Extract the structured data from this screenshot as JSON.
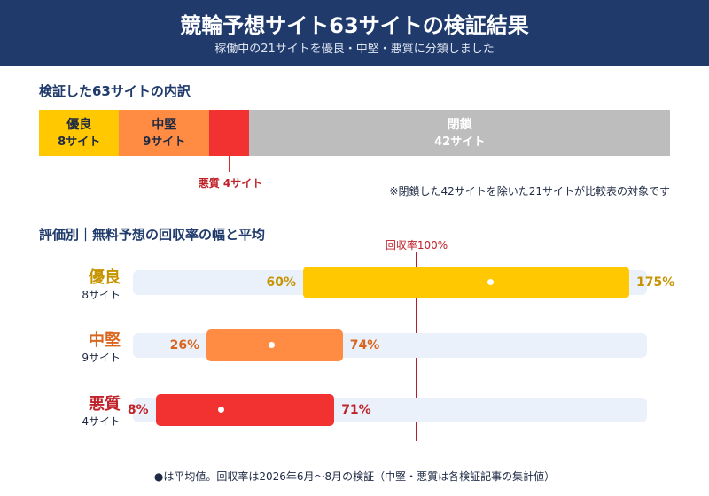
{
  "header": {
    "title": "競輪予想サイト63サイトの検証結果",
    "subtitle": "稼働中の21サイトを優良・中堅・悪質に分類しました"
  },
  "breakdown": {
    "section_title": "検証した63サイトの内訳",
    "total": 63,
    "segments": [
      {
        "name": "優良",
        "count_label": "8サイト",
        "count": 8,
        "color": "#ffc800",
        "text_color": "#1f2a44"
      },
      {
        "name": "中堅",
        "count_label": "9サイト",
        "count": 9,
        "color": "#ff8c42",
        "text_color": "#1f2a44"
      },
      {
        "name": "悪質",
        "count_label": "4サイト",
        "count": 4,
        "color": "#f23131",
        "text_color": "#ffffff"
      },
      {
        "name": "閉鎖",
        "count_label": "42サイト",
        "count": 42,
        "color": "#bdbdbd",
        "text_color": "#ffffff"
      }
    ],
    "callout": "悪質 4サイト",
    "note": "※閉鎖した42サイトを除いた21サイトが比較表の対象です"
  },
  "chart_title": "評価別｜無料予想の回収率の幅と平均",
  "chart_data": {
    "type": "bar",
    "title": "評価別｜無料予想の回収率の幅と平均",
    "xlim": [
      0,
      200
    ],
    "reference": {
      "value": 100,
      "label": "回収率100%"
    },
    "categories": [
      "優良",
      "中堅",
      "悪質"
    ],
    "series": [
      {
        "category": "優良",
        "count_label": "8サイト",
        "min": 60,
        "max": 175,
        "min_label": "60%",
        "max_label": "175%",
        "average": 126,
        "color": "#ffc800",
        "text_color": "#c59400"
      },
      {
        "category": "中堅",
        "count_label": "9サイト",
        "min": 26,
        "max": 74,
        "min_label": "26%",
        "max_label": "74%",
        "average": 49,
        "color": "#ff8c42",
        "text_color": "#d9661e"
      },
      {
        "category": "悪質",
        "count_label": "4サイト",
        "min": 8,
        "max": 71,
        "min_label": "8%",
        "max_label": "71%",
        "average": 31,
        "color": "#f23131",
        "text_color": "#c0222a"
      }
    ]
  },
  "footnote": "●は平均値。回収率は2026年6月〜8月の検証（中堅・悪質は各検証記事の集計値）"
}
